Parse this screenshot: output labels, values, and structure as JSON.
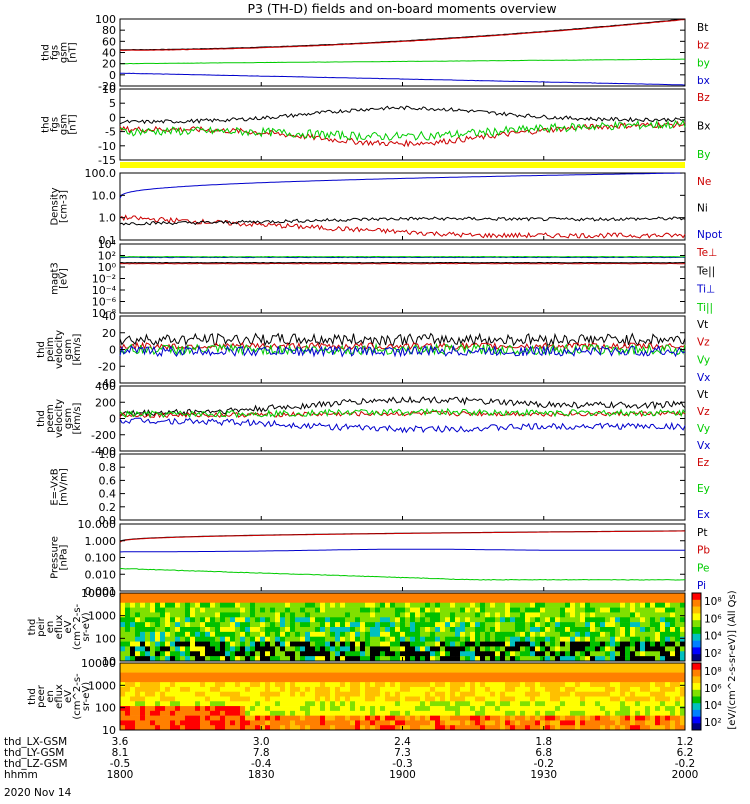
{
  "title": "P3 (TH-D) fields and on-board moments overview",
  "date_label": "2020 Nov 14",
  "colors": {
    "black": "#000000",
    "red": "#cc0000",
    "green": "#00cc00",
    "blue": "#0000cc",
    "yellow": "#ffff00"
  },
  "chart_data": [
    {
      "type": "line",
      "ylabel": [
        "thd",
        "fgs",
        "gsm",
        "[nT]"
      ],
      "yticks": [
        "100",
        "80",
        "60",
        "40",
        "20",
        "0",
        "-20"
      ],
      "ylim": [
        -20,
        100
      ],
      "series": [
        {
          "name": "Bt",
          "color": "black",
          "shape": "rise",
          "y0": 45,
          "y1": 100,
          "noise": 0.3
        },
        {
          "name": "bz",
          "color": "red",
          "shape": "rise",
          "y0": 44,
          "y1": 99,
          "noise": 0.3
        },
        {
          "name": "by",
          "color": "green",
          "shape": "line",
          "y0": 20,
          "y1": 28,
          "noise": 0.2
        },
        {
          "name": "bx",
          "color": "blue",
          "shape": "line",
          "y0": 3,
          "y1": -18,
          "noise": 0.2
        }
      ]
    },
    {
      "type": "line",
      "ylabel": [
        "thd",
        "fgs",
        "gsm",
        "[nT]"
      ],
      "yticks": [
        "10",
        "5",
        "0",
        "-5",
        "-10",
        "-15"
      ],
      "ylim": [
        -18,
        12
      ],
      "series": [
        {
          "name": "Bz",
          "color": "red",
          "shape": "dip",
          "y0": -5,
          "y1": -3,
          "mid": -11,
          "noise": 1.2
        },
        {
          "name": "Bx",
          "color": "black",
          "shape": "hump",
          "y0": -2,
          "y1": -1,
          "mid": 4,
          "noise": 0.8
        },
        {
          "name": "By",
          "color": "green",
          "shape": "dip",
          "y0": -6,
          "y1": -3,
          "mid": -8,
          "noise": 1.8
        }
      ]
    },
    {
      "type": "line",
      "log": true,
      "ylabel": [
        "Density",
        "[cm-3]"
      ],
      "yticks": [
        "100.0",
        "10.0",
        "1.0",
        "0.1"
      ],
      "ylim": [
        0.07,
        200
      ],
      "series": [
        {
          "name": "Ne",
          "color": "red",
          "shape": "logdecay",
          "y0": 1.0,
          "y1": 0.12,
          "noise": 0.15
        },
        {
          "name": "Ni",
          "color": "black",
          "shape": "loghump",
          "y0": 0.5,
          "y1": 0.9,
          "noise": 0.1
        },
        {
          "name": "Npot",
          "color": "blue",
          "shape": "logrise",
          "y0": 10,
          "y1": 200,
          "noise": 0.0
        }
      ]
    },
    {
      "type": "line",
      "log": true,
      "ylabel": [
        "magt3",
        "[eV]"
      ],
      "yticks": [
        "10⁴",
        "10²",
        "10⁰",
        "10⁻²",
        "10⁻⁴",
        "10⁻⁶",
        "10⁻⁸"
      ],
      "ylim": [
        1e-08,
        100000.0
      ],
      "series": [
        {
          "name": "Te⊥",
          "color": "red",
          "shape": "flat",
          "y0": 20,
          "y1": 20,
          "noise": 0.05
        },
        {
          "name": "Te||",
          "color": "black",
          "shape": "flat",
          "y0": 30,
          "y1": 30,
          "noise": 0.05
        },
        {
          "name": "Ti⊥",
          "color": "blue",
          "shape": "flat",
          "y0": 300,
          "y1": 300,
          "noise": 0.05
        },
        {
          "name": "Ti||",
          "color": "green",
          "shape": "flat",
          "y0": 400,
          "y1": 400,
          "noise": 0.05
        }
      ]
    },
    {
      "type": "line",
      "ylabel": [
        "thd",
        "peim",
        "velocity",
        "gsm",
        "[km/s]"
      ],
      "yticks": [
        "40",
        "20",
        "0",
        "-20",
        "-40"
      ],
      "ylim": [
        -40,
        40
      ],
      "series": [
        {
          "name": "Vt",
          "color": "black",
          "shape": "flat",
          "y0": 12,
          "y1": 12,
          "noise": 7
        },
        {
          "name": "Vz",
          "color": "red",
          "shape": "flat",
          "y0": 4,
          "y1": 4,
          "noise": 4
        },
        {
          "name": "Vy",
          "color": "green",
          "shape": "flat",
          "y0": 0,
          "y1": 0,
          "noise": 6
        },
        {
          "name": "Vx",
          "color": "blue",
          "shape": "flat",
          "y0": -2,
          "y1": -2,
          "noise": 6
        }
      ]
    },
    {
      "type": "line",
      "ylabel": [
        "thd",
        "peem",
        "velocity",
        "gsm",
        "[km/s]"
      ],
      "yticks": [
        "400",
        "200",
        "0",
        "-200",
        "-400"
      ],
      "ylim": [
        -400,
        400
      ],
      "series": [
        {
          "name": "Vt",
          "color": "black",
          "shape": "hump",
          "y0": 60,
          "y1": 170,
          "mid": 230,
          "noise": 40
        },
        {
          "name": "Vz",
          "color": "red",
          "shape": "hump",
          "y0": 40,
          "y1": 60,
          "mid": 60,
          "noise": 30
        },
        {
          "name": "Vy",
          "color": "green",
          "shape": "hump",
          "y0": 50,
          "y1": 70,
          "mid": 80,
          "noise": 40
        },
        {
          "name": "Vx",
          "color": "blue",
          "shape": "dip",
          "y0": -20,
          "y1": -100,
          "mid": -130,
          "noise": 40
        }
      ]
    },
    {
      "type": "line",
      "ylabel": [
        "E=-VxB",
        "[mV/m]"
      ],
      "yticks": [
        "1.0",
        "0.8",
        "0.6",
        "0.4",
        "0.2",
        "0.0"
      ],
      "ylim": [
        0,
        1
      ],
      "series": [
        {
          "name": "Ez",
          "color": "red",
          "shape": "none"
        },
        {
          "name": "Ey",
          "color": "green",
          "shape": "none"
        },
        {
          "name": "Ex",
          "color": "blue",
          "shape": "none"
        }
      ]
    },
    {
      "type": "line",
      "log": true,
      "ylabel": [
        "Pressure",
        "[nPa]"
      ],
      "yticks": [
        "10.000",
        "1.000",
        "0.100",
        "0.010",
        "0.001"
      ],
      "ylim": [
        0.0008,
        12
      ],
      "series": [
        {
          "name": "Pt",
          "color": "black",
          "shape": "logrise",
          "y0": 0.9,
          "y1": 4.5,
          "noise": 0.0
        },
        {
          "name": "Pb",
          "color": "red",
          "shape": "logrise",
          "y0": 0.85,
          "y1": 4.4,
          "noise": 0.0
        },
        {
          "name": "Pe",
          "color": "green",
          "shape": "logdecay",
          "y0": 0.02,
          "y1": 0.004,
          "noise": 0.02
        },
        {
          "name": "Pi",
          "color": "blue",
          "shape": "loghump",
          "y0": 0.22,
          "y1": 0.28,
          "noise": 0.0
        }
      ]
    },
    {
      "type": "heatmap",
      "log": true,
      "ylabel": [
        "thd",
        "peir",
        "en",
        "eflux",
        "eV",
        "(cm^2-s-",
        "sr-eV)"
      ],
      "yticks": [
        "10000",
        "1000",
        "100",
        "10"
      ],
      "ylim": [
        5,
        30000
      ],
      "variant": "ion"
    },
    {
      "type": "heatmap",
      "log": true,
      "ylabel": [
        "thd",
        "peer",
        "en",
        "eflux",
        "eV",
        "(cm^2-s-",
        "sr-eV)"
      ],
      "yticks": [
        "10000",
        "1000",
        "100",
        "10"
      ],
      "ylim": [
        5,
        30000
      ],
      "variant": "electron"
    }
  ],
  "colorbar": {
    "label": "[eV/(cm^2-s-sr-eV)] (All Qs)",
    "top_ticks": [
      "10⁸",
      "10⁶",
      "10⁴",
      "10²"
    ],
    "bottom_ticks": [
      "10⁸",
      "10⁶",
      "10⁴",
      "10²"
    ]
  },
  "xaxis": {
    "rows": [
      {
        "label": "thd_LX-GSM",
        "values": [
          "3.6",
          "3.0",
          "2.4",
          "1.8",
          "1.2"
        ]
      },
      {
        "label": "thd_LY-GSM",
        "values": [
          "8.1",
          "7.8",
          "7.3",
          "6.8",
          "6.2"
        ]
      },
      {
        "label": "thd_LZ-GSM",
        "values": [
          "-0.5",
          "-0.4",
          "-0.3",
          "-0.2",
          "-0.2"
        ]
      },
      {
        "label": "hhmm",
        "values": [
          "1800",
          "1830",
          "1900",
          "1930",
          "2000"
        ]
      }
    ]
  }
}
